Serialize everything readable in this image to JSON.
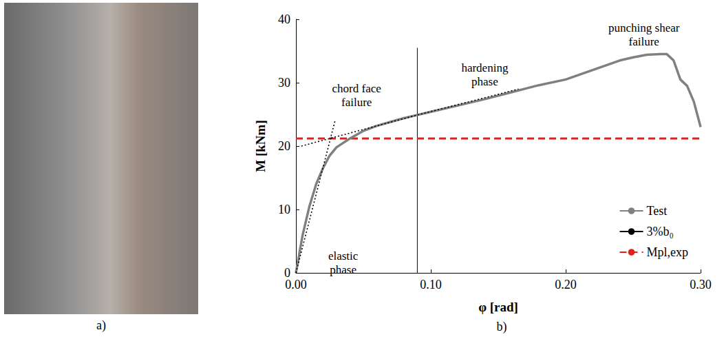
{
  "photo": {
    "caption": "a)"
  },
  "chart_data": {
    "type": "line",
    "caption": "b)",
    "x_label": "φ [rad]",
    "y_label": "M [kNm]",
    "xlim": [
      0,
      0.3
    ],
    "xticks": [
      {
        "value": 0,
        "label": "0.00"
      },
      {
        "value": 0.1,
        "label": "0.10"
      },
      {
        "value": 0.2,
        "label": "0.20"
      },
      {
        "value": 0.3,
        "label": "0.30"
      }
    ],
    "ylim": [
      0,
      40
    ],
    "yticks": [
      0,
      10,
      20,
      30,
      40
    ],
    "grid": false,
    "legend": "bottom-right",
    "series": [
      {
        "name": "Test",
        "color": "#808080",
        "line_style": "solid",
        "x": [
          0,
          0.005,
          0.01,
          0.015,
          0.02,
          0.025,
          0.03,
          0.04,
          0.05,
          0.06,
          0.07,
          0.08,
          0.09,
          0.1,
          0.12,
          0.14,
          0.16,
          0.18,
          0.2,
          0.22,
          0.24,
          0.25,
          0.26,
          0.27,
          0.275,
          0.28,
          0.285,
          0.29,
          0.295,
          0.3
        ],
        "values": [
          0,
          6,
          10.5,
          14,
          16.5,
          18.5,
          19.8,
          21.2,
          22.4,
          23.2,
          23.8,
          24.4,
          24.9,
          25.4,
          26.4,
          27.4,
          28.5,
          29.6,
          30.5,
          32,
          33.5,
          34,
          34.4,
          34.5,
          34.5,
          33.5,
          30.5,
          29.5,
          27,
          23
        ]
      },
      {
        "name": "3%b₀",
        "color": "#000000",
        "line_style": "solid",
        "x": [
          0.09,
          0.09
        ],
        "values": [
          0,
          35.5
        ]
      },
      {
        "name": "Mpl,exp",
        "color": "#e0201b",
        "line_style": "dashed",
        "x": [
          0,
          0.3
        ],
        "values": [
          21.2,
          21.2
        ]
      }
    ],
    "guides": [
      {
        "color": "#000000",
        "line_style": "dotted",
        "x": [
          0,
          0.029
        ],
        "values": [
          0,
          24
        ]
      },
      {
        "color": "#000000",
        "line_style": "dotted",
        "x": [
          0.004,
          0.09,
          0.165
        ],
        "values": [
          20,
          24.9,
          29
        ]
      }
    ],
    "annotations": [
      {
        "text": "punching shear\nfailure",
        "x": 0.258,
        "y": 37.6
      },
      {
        "text": "hardening\nphase",
        "x": 0.14,
        "y": 31.3
      },
      {
        "text": "chord face\nfailure",
        "x": 0.045,
        "y": 28
      },
      {
        "text": "elastic\nphase",
        "x": 0.035,
        "y": 1.6
      }
    ]
  }
}
